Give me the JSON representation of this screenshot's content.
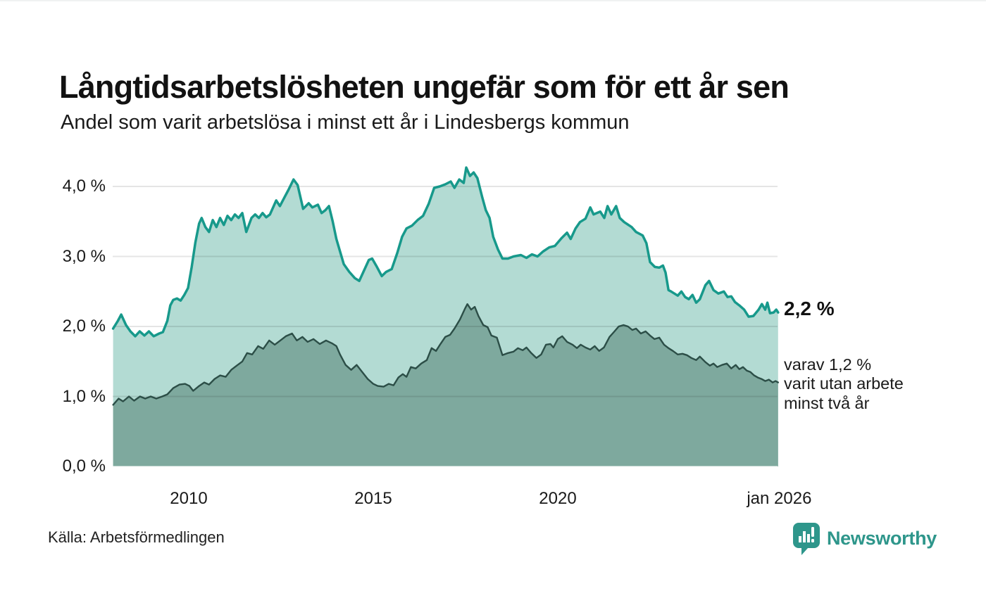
{
  "header": {
    "title": "Långtidsarbetslösheten ungefär som för ett år sen",
    "subtitle": "Andel som varit arbetslösa i minst ett år i Lindesbergs kommun"
  },
  "annotations": {
    "latest_value": "2,2 %",
    "secondary": "varav 1,2 %\nvarit utan arbete\nminst två år"
  },
  "footer": {
    "source": "Källa: Arbetsförmedlingen",
    "brand": "Newsworthy",
    "brand_color": "#2e968b"
  },
  "chart_data": {
    "type": "area",
    "grid": "horizontal",
    "xlim": [
      2007.95,
      2026.0
    ],
    "ylim": [
      0,
      4.4
    ],
    "x_ticks": [
      {
        "year": 2010,
        "label": "2010"
      },
      {
        "year": 2015,
        "label": "2015"
      },
      {
        "year": 2020,
        "label": "2020"
      },
      {
        "year": 2026,
        "label": "jan 2026"
      }
    ],
    "y_ticks": [
      {
        "value": 0,
        "label": "0,0 %"
      },
      {
        "value": 1,
        "label": "1,0 %"
      },
      {
        "value": 2,
        "label": "2,0 %"
      },
      {
        "value": 3,
        "label": "3,0 %"
      },
      {
        "value": 4,
        "label": "4,0 %"
      }
    ],
    "series": [
      {
        "name": "Arbetslösa minst ett år",
        "latest_label": "2,2 %",
        "line_color": "#17998b",
        "fill_color": "#b3dbd3",
        "points": [
          [
            2007.95,
            1.97
          ],
          [
            2008.08,
            2.08
          ],
          [
            2008.17,
            2.17
          ],
          [
            2008.3,
            2.02
          ],
          [
            2008.42,
            1.93
          ],
          [
            2008.55,
            1.86
          ],
          [
            2008.67,
            1.93
          ],
          [
            2008.8,
            1.87
          ],
          [
            2008.92,
            1.93
          ],
          [
            2009.05,
            1.86
          ],
          [
            2009.2,
            1.9
          ],
          [
            2009.3,
            1.92
          ],
          [
            2009.42,
            2.08
          ],
          [
            2009.5,
            2.3
          ],
          [
            2009.58,
            2.38
          ],
          [
            2009.68,
            2.4
          ],
          [
            2009.78,
            2.37
          ],
          [
            2009.88,
            2.45
          ],
          [
            2009.98,
            2.55
          ],
          [
            2010.08,
            2.85
          ],
          [
            2010.18,
            3.2
          ],
          [
            2010.28,
            3.47
          ],
          [
            2010.35,
            3.55
          ],
          [
            2010.45,
            3.42
          ],
          [
            2010.55,
            3.35
          ],
          [
            2010.65,
            3.52
          ],
          [
            2010.75,
            3.42
          ],
          [
            2010.85,
            3.55
          ],
          [
            2010.95,
            3.45
          ],
          [
            2011.05,
            3.58
          ],
          [
            2011.15,
            3.52
          ],
          [
            2011.25,
            3.6
          ],
          [
            2011.35,
            3.55
          ],
          [
            2011.45,
            3.62
          ],
          [
            2011.56,
            3.35
          ],
          [
            2011.7,
            3.55
          ],
          [
            2011.8,
            3.6
          ],
          [
            2011.9,
            3.55
          ],
          [
            2012.0,
            3.62
          ],
          [
            2012.1,
            3.56
          ],
          [
            2012.2,
            3.6
          ],
          [
            2012.37,
            3.8
          ],
          [
            2012.47,
            3.72
          ],
          [
            2012.6,
            3.85
          ],
          [
            2012.7,
            3.95
          ],
          [
            2012.84,
            4.1
          ],
          [
            2012.95,
            4.02
          ],
          [
            2013.1,
            3.68
          ],
          [
            2013.25,
            3.76
          ],
          [
            2013.35,
            3.7
          ],
          [
            2013.5,
            3.74
          ],
          [
            2013.6,
            3.62
          ],
          [
            2013.7,
            3.66
          ],
          [
            2013.8,
            3.72
          ],
          [
            2013.9,
            3.5
          ],
          [
            2014.0,
            3.25
          ],
          [
            2014.2,
            2.89
          ],
          [
            2014.35,
            2.78
          ],
          [
            2014.5,
            2.69
          ],
          [
            2014.62,
            2.65
          ],
          [
            2014.75,
            2.8
          ],
          [
            2014.88,
            2.95
          ],
          [
            2014.97,
            2.97
          ],
          [
            2015.1,
            2.85
          ],
          [
            2015.23,
            2.72
          ],
          [
            2015.35,
            2.78
          ],
          [
            2015.5,
            2.82
          ],
          [
            2015.65,
            3.05
          ],
          [
            2015.78,
            3.28
          ],
          [
            2015.9,
            3.4
          ],
          [
            2016.05,
            3.44
          ],
          [
            2016.2,
            3.52
          ],
          [
            2016.35,
            3.58
          ],
          [
            2016.5,
            3.75
          ],
          [
            2016.65,
            3.98
          ],
          [
            2016.8,
            4.0
          ],
          [
            2016.95,
            4.03
          ],
          [
            2017.1,
            4.07
          ],
          [
            2017.2,
            3.98
          ],
          [
            2017.33,
            4.1
          ],
          [
            2017.45,
            4.05
          ],
          [
            2017.52,
            4.27
          ],
          [
            2017.62,
            4.15
          ],
          [
            2017.72,
            4.2
          ],
          [
            2017.82,
            4.12
          ],
          [
            2017.95,
            3.85
          ],
          [
            2018.05,
            3.66
          ],
          [
            2018.15,
            3.55
          ],
          [
            2018.25,
            3.28
          ],
          [
            2018.38,
            3.1
          ],
          [
            2018.5,
            2.97
          ],
          [
            2018.65,
            2.97
          ],
          [
            2018.8,
            3.0
          ],
          [
            2019.0,
            3.02
          ],
          [
            2019.15,
            2.98
          ],
          [
            2019.3,
            3.03
          ],
          [
            2019.45,
            3.0
          ],
          [
            2019.6,
            3.07
          ],
          [
            2019.77,
            3.13
          ],
          [
            2019.92,
            3.15
          ],
          [
            2020.1,
            3.26
          ],
          [
            2020.25,
            3.34
          ],
          [
            2020.35,
            3.25
          ],
          [
            2020.48,
            3.4
          ],
          [
            2020.6,
            3.49
          ],
          [
            2020.75,
            3.54
          ],
          [
            2020.88,
            3.7
          ],
          [
            2020.97,
            3.6
          ],
          [
            2021.15,
            3.64
          ],
          [
            2021.26,
            3.55
          ],
          [
            2021.35,
            3.72
          ],
          [
            2021.45,
            3.6
          ],
          [
            2021.58,
            3.72
          ],
          [
            2021.68,
            3.55
          ],
          [
            2021.8,
            3.49
          ],
          [
            2022.0,
            3.42
          ],
          [
            2022.12,
            3.35
          ],
          [
            2022.3,
            3.3
          ],
          [
            2022.4,
            3.19
          ],
          [
            2022.5,
            2.92
          ],
          [
            2022.63,
            2.85
          ],
          [
            2022.75,
            2.84
          ],
          [
            2022.85,
            2.87
          ],
          [
            2022.92,
            2.77
          ],
          [
            2023.0,
            2.52
          ],
          [
            2023.07,
            2.5
          ],
          [
            2023.25,
            2.44
          ],
          [
            2023.35,
            2.5
          ],
          [
            2023.45,
            2.42
          ],
          [
            2023.55,
            2.39
          ],
          [
            2023.65,
            2.45
          ],
          [
            2023.75,
            2.34
          ],
          [
            2023.85,
            2.39
          ],
          [
            2024.0,
            2.59
          ],
          [
            2024.1,
            2.65
          ],
          [
            2024.22,
            2.52
          ],
          [
            2024.35,
            2.47
          ],
          [
            2024.5,
            2.5
          ],
          [
            2024.6,
            2.42
          ],
          [
            2024.7,
            2.43
          ],
          [
            2024.8,
            2.35
          ],
          [
            2024.92,
            2.3
          ],
          [
            2025.05,
            2.24
          ],
          [
            2025.17,
            2.14
          ],
          [
            2025.3,
            2.15
          ],
          [
            2025.44,
            2.24
          ],
          [
            2025.53,
            2.32
          ],
          [
            2025.62,
            2.24
          ],
          [
            2025.68,
            2.34
          ],
          [
            2025.75,
            2.19
          ],
          [
            2025.85,
            2.2
          ],
          [
            2025.92,
            2.24
          ],
          [
            2025.97,
            2.2
          ]
        ]
      },
      {
        "name": "Utan arbete minst två år",
        "latest_label": "1,2 %",
        "line_color": "#2c4e47",
        "fill_color": "#7ea99e",
        "points": [
          [
            2007.95,
            0.88
          ],
          [
            2008.1,
            0.97
          ],
          [
            2008.22,
            0.93
          ],
          [
            2008.38,
            1.0
          ],
          [
            2008.52,
            0.94
          ],
          [
            2008.68,
            1.0
          ],
          [
            2008.82,
            0.97
          ],
          [
            2008.97,
            1.0
          ],
          [
            2009.12,
            0.97
          ],
          [
            2009.28,
            1.0
          ],
          [
            2009.42,
            1.03
          ],
          [
            2009.58,
            1.12
          ],
          [
            2009.75,
            1.17
          ],
          [
            2009.9,
            1.18
          ],
          [
            2010.02,
            1.15
          ],
          [
            2010.12,
            1.08
          ],
          [
            2010.28,
            1.15
          ],
          [
            2010.42,
            1.2
          ],
          [
            2010.55,
            1.17
          ],
          [
            2010.7,
            1.25
          ],
          [
            2010.85,
            1.3
          ],
          [
            2011.0,
            1.28
          ],
          [
            2011.15,
            1.38
          ],
          [
            2011.3,
            1.44
          ],
          [
            2011.45,
            1.5
          ],
          [
            2011.58,
            1.62
          ],
          [
            2011.72,
            1.6
          ],
          [
            2011.88,
            1.72
          ],
          [
            2012.02,
            1.68
          ],
          [
            2012.18,
            1.8
          ],
          [
            2012.33,
            1.74
          ],
          [
            2012.48,
            1.8
          ],
          [
            2012.63,
            1.86
          ],
          [
            2012.8,
            1.9
          ],
          [
            2012.93,
            1.8
          ],
          [
            2013.08,
            1.85
          ],
          [
            2013.22,
            1.78
          ],
          [
            2013.38,
            1.82
          ],
          [
            2013.55,
            1.75
          ],
          [
            2013.72,
            1.8
          ],
          [
            2013.88,
            1.76
          ],
          [
            2014.0,
            1.72
          ],
          [
            2014.1,
            1.6
          ],
          [
            2014.25,
            1.45
          ],
          [
            2014.4,
            1.38
          ],
          [
            2014.55,
            1.45
          ],
          [
            2014.7,
            1.35
          ],
          [
            2014.85,
            1.25
          ],
          [
            2015.0,
            1.18
          ],
          [
            2015.12,
            1.15
          ],
          [
            2015.28,
            1.14
          ],
          [
            2015.42,
            1.18
          ],
          [
            2015.55,
            1.16
          ],
          [
            2015.68,
            1.27
          ],
          [
            2015.8,
            1.32
          ],
          [
            2015.9,
            1.28
          ],
          [
            2016.02,
            1.42
          ],
          [
            2016.15,
            1.4
          ],
          [
            2016.3,
            1.47
          ],
          [
            2016.45,
            1.52
          ],
          [
            2016.58,
            1.69
          ],
          [
            2016.7,
            1.65
          ],
          [
            2016.82,
            1.75
          ],
          [
            2016.95,
            1.85
          ],
          [
            2017.08,
            1.88
          ],
          [
            2017.2,
            1.97
          ],
          [
            2017.35,
            2.1
          ],
          [
            2017.48,
            2.25
          ],
          [
            2017.55,
            2.32
          ],
          [
            2017.65,
            2.24
          ],
          [
            2017.75,
            2.28
          ],
          [
            2017.85,
            2.15
          ],
          [
            2017.98,
            2.02
          ],
          [
            2018.1,
            1.99
          ],
          [
            2018.2,
            1.87
          ],
          [
            2018.35,
            1.84
          ],
          [
            2018.5,
            1.59
          ],
          [
            2018.65,
            1.62
          ],
          [
            2018.8,
            1.64
          ],
          [
            2018.92,
            1.69
          ],
          [
            2019.05,
            1.66
          ],
          [
            2019.15,
            1.7
          ],
          [
            2019.28,
            1.62
          ],
          [
            2019.42,
            1.55
          ],
          [
            2019.55,
            1.6
          ],
          [
            2019.68,
            1.74
          ],
          [
            2019.8,
            1.75
          ],
          [
            2019.88,
            1.7
          ],
          [
            2020.0,
            1.82
          ],
          [
            2020.12,
            1.86
          ],
          [
            2020.25,
            1.78
          ],
          [
            2020.4,
            1.74
          ],
          [
            2020.52,
            1.69
          ],
          [
            2020.62,
            1.74
          ],
          [
            2020.75,
            1.7
          ],
          [
            2020.88,
            1.67
          ],
          [
            2021.0,
            1.72
          ],
          [
            2021.12,
            1.65
          ],
          [
            2021.25,
            1.7
          ],
          [
            2021.4,
            1.85
          ],
          [
            2021.52,
            1.92
          ],
          [
            2021.65,
            2.0
          ],
          [
            2021.78,
            2.02
          ],
          [
            2021.9,
            2.0
          ],
          [
            2022.02,
            1.95
          ],
          [
            2022.12,
            1.97
          ],
          [
            2022.25,
            1.9
          ],
          [
            2022.38,
            1.93
          ],
          [
            2022.5,
            1.87
          ],
          [
            2022.62,
            1.82
          ],
          [
            2022.75,
            1.84
          ],
          [
            2022.88,
            1.74
          ],
          [
            2023.0,
            1.69
          ],
          [
            2023.12,
            1.65
          ],
          [
            2023.25,
            1.6
          ],
          [
            2023.38,
            1.61
          ],
          [
            2023.5,
            1.59
          ],
          [
            2023.62,
            1.55
          ],
          [
            2023.75,
            1.52
          ],
          [
            2023.85,
            1.57
          ],
          [
            2024.0,
            1.49
          ],
          [
            2024.12,
            1.44
          ],
          [
            2024.22,
            1.47
          ],
          [
            2024.32,
            1.42
          ],
          [
            2024.45,
            1.45
          ],
          [
            2024.58,
            1.47
          ],
          [
            2024.7,
            1.4
          ],
          [
            2024.82,
            1.45
          ],
          [
            2024.92,
            1.39
          ],
          [
            2025.02,
            1.42
          ],
          [
            2025.12,
            1.37
          ],
          [
            2025.22,
            1.35
          ],
          [
            2025.32,
            1.3
          ],
          [
            2025.42,
            1.27
          ],
          [
            2025.52,
            1.25
          ],
          [
            2025.62,
            1.22
          ],
          [
            2025.72,
            1.24
          ],
          [
            2025.82,
            1.2
          ],
          [
            2025.9,
            1.22
          ],
          [
            2025.97,
            1.2
          ]
        ]
      }
    ]
  }
}
